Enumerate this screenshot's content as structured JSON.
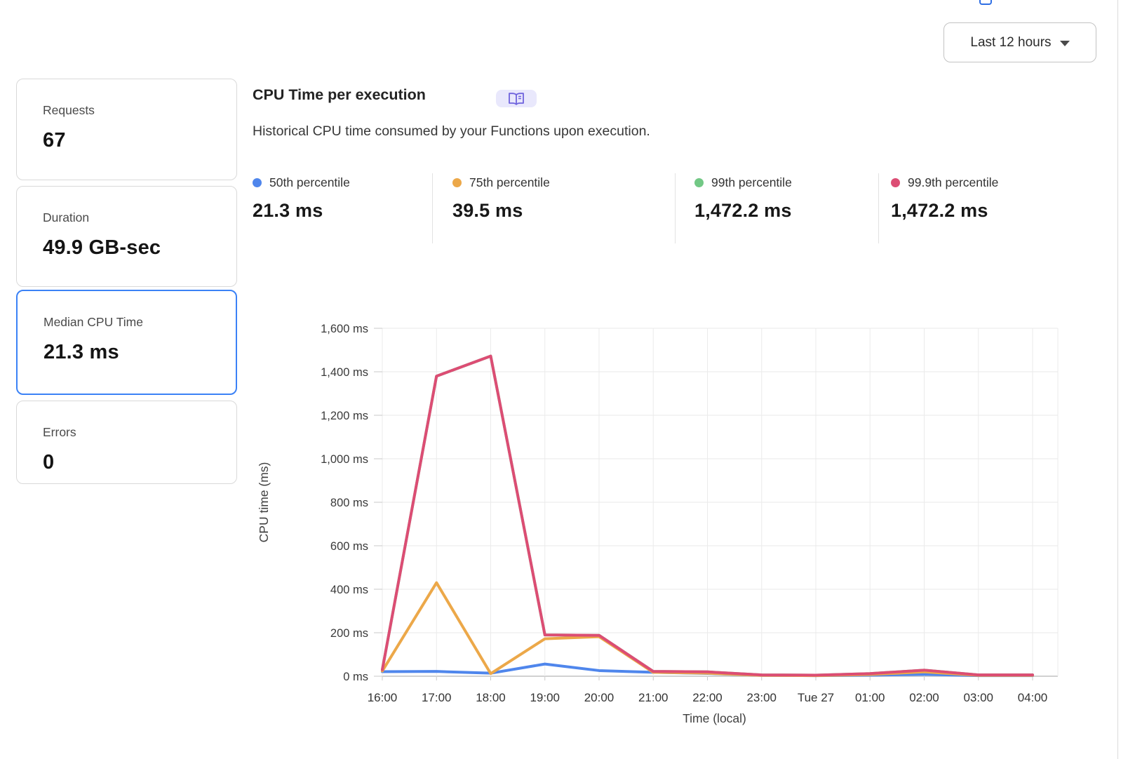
{
  "header": {
    "time_range_label": "Last 12 hours"
  },
  "stat_cards": [
    {
      "label": "Requests",
      "value": "67",
      "selected": false
    },
    {
      "label": "Duration",
      "value": "49.9 GB-sec",
      "selected": false
    },
    {
      "label": "Median CPU Time",
      "value": "21.3 ms",
      "selected": true
    },
    {
      "label": "Errors",
      "value": "0",
      "selected": false
    }
  ],
  "panel": {
    "title": "CPU Time per execution",
    "docs_badge_icon": "open-book-icon",
    "description": "Historical CPU time consumed by your Functions upon execution."
  },
  "legend": [
    {
      "label": "50th percentile",
      "value": "21.3 ms",
      "color": "#4f86ec"
    },
    {
      "label": "75th percentile",
      "value": "39.5 ms",
      "color": "#eca849"
    },
    {
      "label": "99th percentile",
      "value": "1,472.2 ms",
      "color": "#72c885"
    },
    {
      "label": "99.9th percentile",
      "value": "1,472.2 ms",
      "color": "#dc4d74"
    }
  ],
  "chart_data": {
    "type": "line",
    "title": "CPU Time per execution",
    "xlabel": "Time (local)",
    "ylabel": "CPU time (ms)",
    "ylim": [
      0,
      1600
    ],
    "ytick_step": 200,
    "ytick_suffix": " ms",
    "grid": true,
    "legend_position": "top",
    "categories": [
      "16:00",
      "17:00",
      "18:00",
      "19:00",
      "20:00",
      "21:00",
      "22:00",
      "23:00",
      "Tue 27",
      "01:00",
      "02:00",
      "03:00",
      "04:00"
    ],
    "series": [
      {
        "name": "50th percentile",
        "color": "#4f86ec",
        "values": [
          21,
          22,
          14,
          56,
          26,
          18,
          13,
          4,
          3,
          5,
          9,
          3,
          3
        ]
      },
      {
        "name": "75th percentile",
        "color": "#eca849",
        "values": [
          24,
          430,
          12,
          172,
          182,
          18,
          14,
          4,
          3,
          8,
          20,
          4,
          4
        ]
      },
      {
        "name": "99th percentile",
        "color": "#72c885",
        "values": [
          30,
          1380,
          1472.2,
          190,
          188,
          22,
          20,
          6,
          5,
          12,
          28,
          6,
          6
        ]
      },
      {
        "name": "99.9th percentile",
        "color": "#dc4d74",
        "values": [
          30,
          1380,
          1472.2,
          190,
          188,
          22,
          20,
          6,
          5,
          12,
          28,
          6,
          6
        ]
      }
    ]
  }
}
